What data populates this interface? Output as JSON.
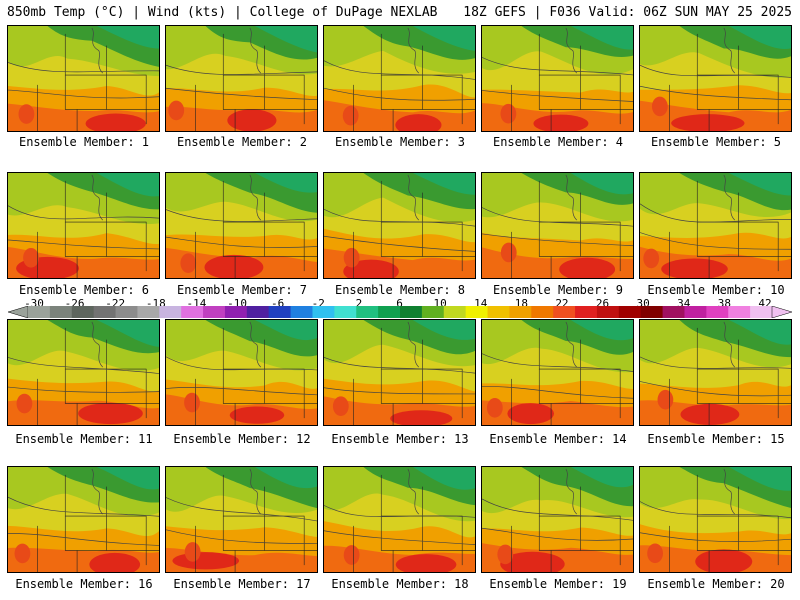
{
  "header": {
    "left": "850mb Temp (°C) | Wind (kts) | College of DuPage NEXLAB",
    "right": "18Z GEFS | F036 Valid: 06Z SUN MAY 25 2025"
  },
  "panels": [
    {
      "label": "Ensemble Member: 1"
    },
    {
      "label": "Ensemble Member: 2"
    },
    {
      "label": "Ensemble Member: 3"
    },
    {
      "label": "Ensemble Member: 4"
    },
    {
      "label": "Ensemble Member: 5"
    },
    {
      "label": "Ensemble Member: 6"
    },
    {
      "label": "Ensemble Member: 7"
    },
    {
      "label": "Ensemble Member: 8"
    },
    {
      "label": "Ensemble Member: 9"
    },
    {
      "label": "Ensemble Member: 10"
    },
    {
      "label": "Ensemble Member: 11"
    },
    {
      "label": "Ensemble Member: 12"
    },
    {
      "label": "Ensemble Member: 13"
    },
    {
      "label": "Ensemble Member: 14"
    },
    {
      "label": "Ensemble Member: 15"
    },
    {
      "label": "Ensemble Member: 16"
    },
    {
      "label": "Ensemble Member: 17"
    },
    {
      "label": "Ensemble Member: 18"
    },
    {
      "label": "Ensemble Member: 19"
    },
    {
      "label": "Ensemble Member: 20"
    }
  ],
  "colorbar": {
    "ticks": [
      "-30",
      "-26",
      "-22",
      "-18",
      "-14",
      "-10",
      "-6",
      "-2",
      "2",
      "6",
      "10",
      "14",
      "18",
      "22",
      "26",
      "30",
      "34",
      "38",
      "42"
    ],
    "colors": [
      "#9aa29a",
      "#7b837b",
      "#5e665e",
      "#737373",
      "#8c8c8c",
      "#a8a8a8",
      "#c8b4e0",
      "#e070e0",
      "#c040c0",
      "#9020b0",
      "#5020a0",
      "#2040c0",
      "#2080e0",
      "#30c0f0",
      "#40e0d0",
      "#20c080",
      "#10a050",
      "#108030",
      "#60b020",
      "#c0d820",
      "#f0f000",
      "#f0c000",
      "#f0a000",
      "#f07800",
      "#f05020",
      "#e02020",
      "#c01010",
      "#a00000",
      "#800000",
      "#a01060",
      "#c020a0",
      "#e040c0",
      "#f080e0",
      "#f0c0f0"
    ]
  }
}
